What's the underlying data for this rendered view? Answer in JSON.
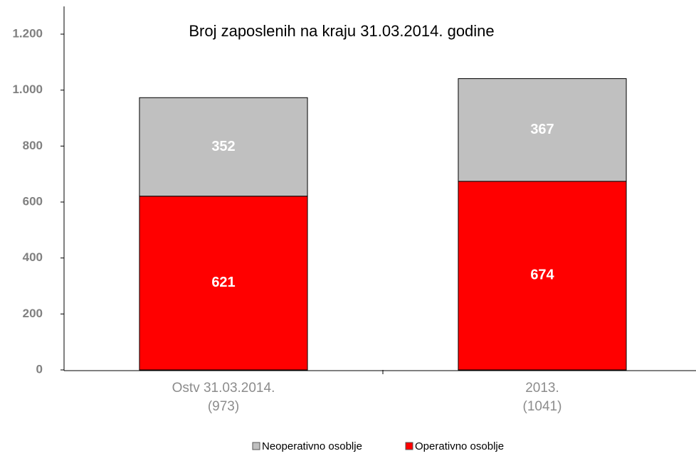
{
  "chart_data": {
    "type": "stacked_bar",
    "title": "Broj zaposlenih na kraju  31.03.2014. godine",
    "categories": [
      "Ostv 31.03.2014.\n(973)",
      "2013.\n(1041)"
    ],
    "series": [
      {
        "name": "Operativno osoblje",
        "color": "#ff0000",
        "values": [
          621,
          674
        ]
      },
      {
        "name": "Neoperativno osoblje",
        "color": "#c0c0c0",
        "values": [
          352,
          367
        ]
      }
    ],
    "ylim": [
      0,
      1300
    ],
    "yticks": [
      0,
      200,
      400,
      600,
      800,
      {
        "value": 1000,
        "label": "1.000"
      },
      {
        "value": 1200,
        "label": "1.200"
      }
    ],
    "legend": "bottom"
  }
}
